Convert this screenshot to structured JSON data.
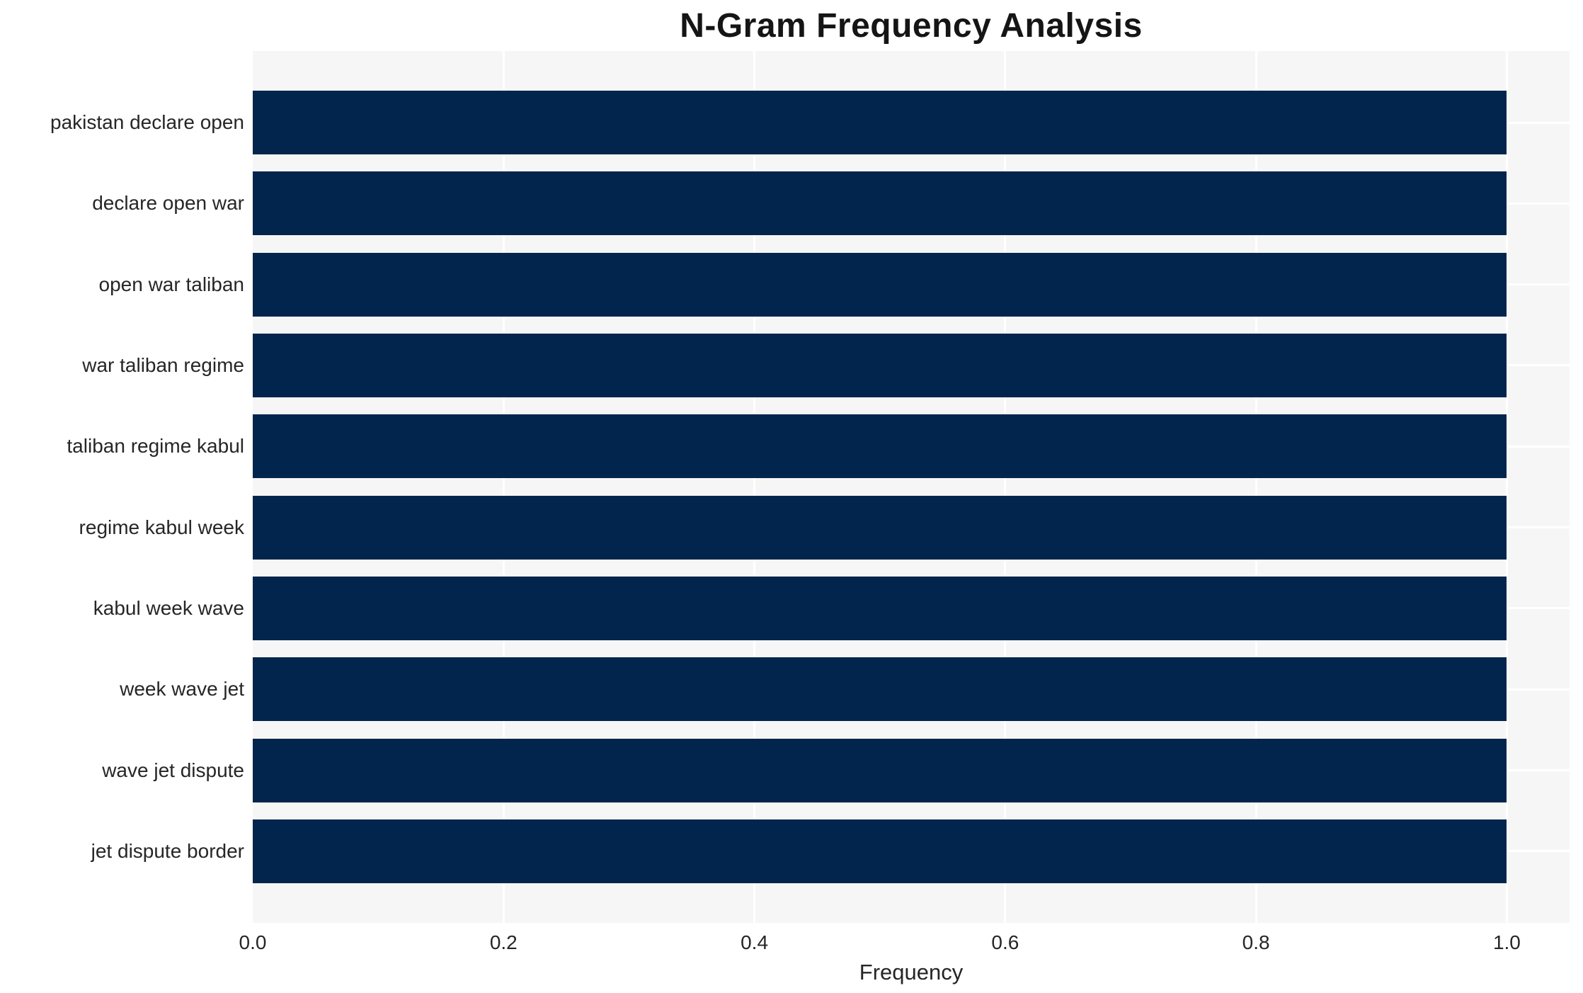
{
  "chart_data": {
    "type": "bar",
    "orientation": "horizontal",
    "title": "N-Gram Frequency Analysis",
    "xlabel": "Frequency",
    "ylabel": "",
    "categories": [
      "pakistan declare open",
      "declare open war",
      "open war taliban",
      "war taliban regime",
      "taliban regime kabul",
      "regime kabul week",
      "kabul week wave",
      "week wave jet",
      "wave jet dispute",
      "jet dispute border"
    ],
    "values": [
      1.0,
      1.0,
      1.0,
      1.0,
      1.0,
      1.0,
      1.0,
      1.0,
      1.0,
      1.0
    ],
    "xlim": [
      0,
      1.05
    ],
    "xticks": [
      0.0,
      0.2,
      0.4,
      0.6,
      0.8,
      1.0
    ],
    "xtick_labels": [
      "0.0",
      "0.2",
      "0.4",
      "0.6",
      "0.8",
      "1.0"
    ],
    "grid": "on",
    "legend": "none"
  },
  "colors": {
    "bar": "#02254d",
    "plot_background": "#f6f6f6",
    "gridline": "#ffffff",
    "page_background": "#ffffff",
    "title_text": "#151515",
    "label_text": "#262626"
  }
}
